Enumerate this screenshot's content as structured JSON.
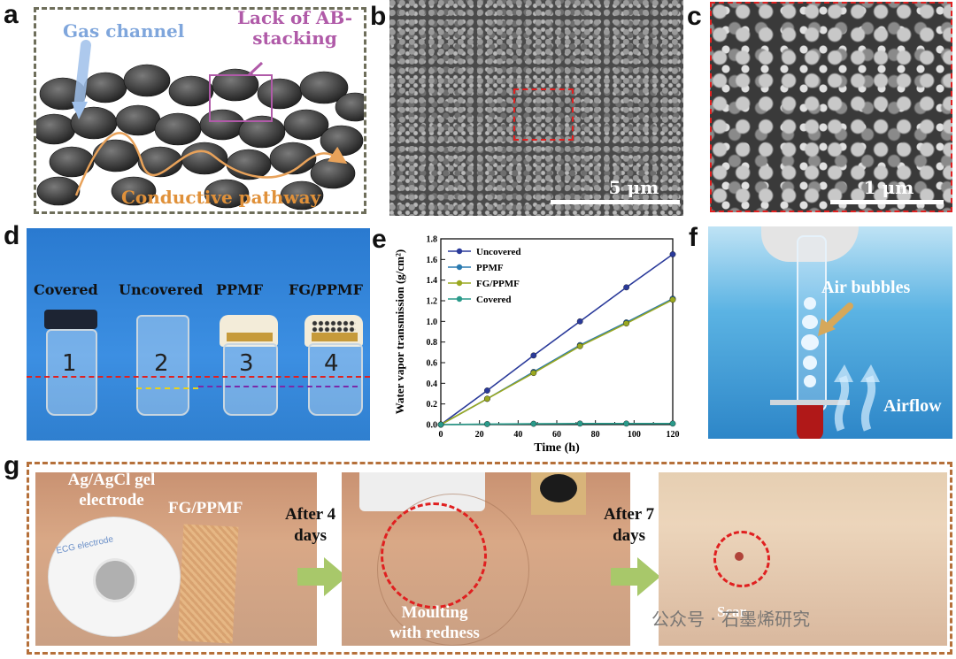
{
  "panels": {
    "a": {
      "label": "a",
      "gas_channel": "Gas channel",
      "lack_ab": "Lack of AB-\nstacking",
      "conductive": "Conductive pathway"
    },
    "b": {
      "label": "b",
      "scale": "5 μm"
    },
    "c": {
      "label": "c",
      "scale": "1 μm"
    },
    "d": {
      "label": "d",
      "vials": [
        "Covered",
        "Uncovered",
        "PPMF",
        "FG/PPMF"
      ],
      "vial_numbers": [
        "1",
        "2",
        "3",
        "4"
      ]
    },
    "e": {
      "label": "e"
    },
    "f": {
      "label": "f",
      "bubbles": "Air bubbles",
      "airflow": "Airflow"
    },
    "g": {
      "label": "g",
      "electrode": "Ag/AgCl gel\nelectrode",
      "fgppmf": "FG/PPMF",
      "after4": "After 4\ndays",
      "after7": "After 7\ndays",
      "moulting": "Moulting\nwith redness",
      "scar": "Scar",
      "ecg_text": "ECG electrode",
      "watermark": "公众号 · 石墨烯研究"
    }
  },
  "colors": {
    "uncovered": "#2a3a9a",
    "ppmf": "#2a7ab0",
    "fgppmf": "#9aa820",
    "covered": "#2a9a8a",
    "dash_brown": "#b5703a",
    "dash_gray": "#6e6e5a",
    "red": "#e02020"
  },
  "chart_data": {
    "type": "line",
    "xlabel": "Time (h)",
    "ylabel": "Water vapor transmission (g/cm²)",
    "xlim": [
      0,
      120
    ],
    "ylim": [
      0,
      1.8
    ],
    "xticks": [
      0,
      10,
      20,
      30,
      40,
      50,
      60,
      70,
      80,
      90,
      100,
      110,
      120
    ],
    "yticks": [
      0.0,
      0.2,
      0.4,
      0.6,
      0.8,
      1.0,
      1.2,
      1.4,
      1.6,
      1.8
    ],
    "x": [
      0,
      24,
      48,
      72,
      96,
      120
    ],
    "series": [
      {
        "name": "Uncovered",
        "values": [
          0,
          0.33,
          0.67,
          1.0,
          1.33,
          1.65
        ],
        "color": "#2a3a9a"
      },
      {
        "name": "PPMF",
        "values": [
          0,
          0.25,
          0.51,
          0.77,
          0.99,
          1.22
        ],
        "color": "#2a7ab0"
      },
      {
        "name": "FG/PPMF",
        "values": [
          0,
          0.25,
          0.5,
          0.76,
          0.98,
          1.21
        ],
        "color": "#9aa820"
      },
      {
        "name": "Covered",
        "values": [
          0,
          0.005,
          0.008,
          0.01,
          0.01,
          0.01
        ],
        "color": "#2a9a8a"
      }
    ],
    "legend": "top-left",
    "grid": false
  }
}
